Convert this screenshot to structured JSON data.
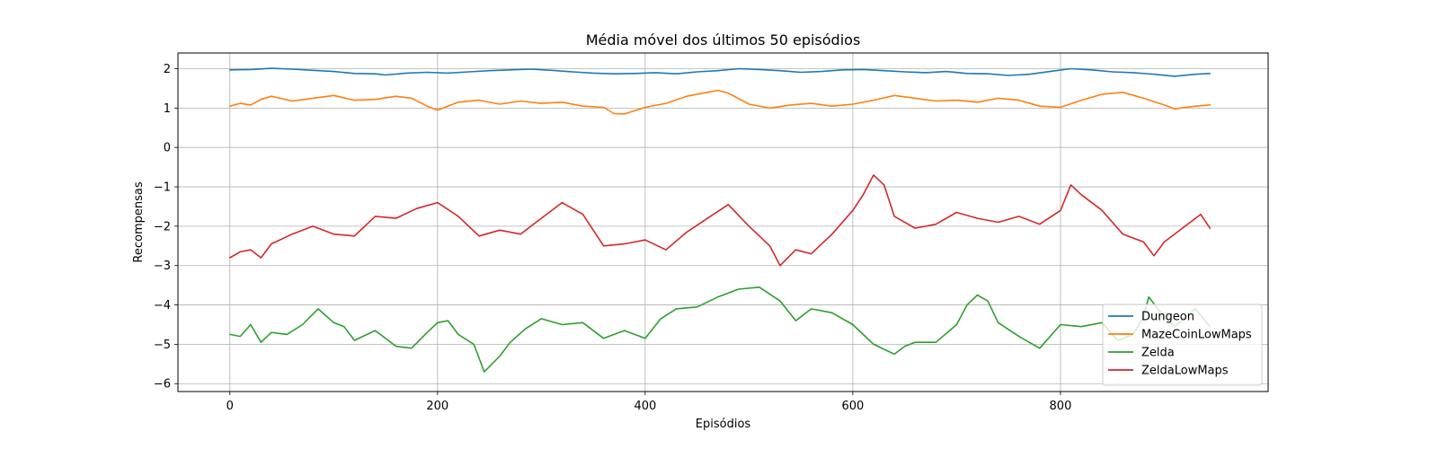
{
  "chart_data": {
    "type": "line",
    "title": "Média móvel dos últimos 50 episódios",
    "xlabel": "Episódios",
    "ylabel": "Recompensas",
    "xlim": [
      -50,
      1000
    ],
    "ylim": [
      -6.2,
      2.4
    ],
    "xticks": [
      0,
      200,
      400,
      600,
      800
    ],
    "yticks": [
      -6,
      -5,
      -4,
      -3,
      -2,
      -1,
      0,
      1,
      2
    ],
    "grid": true,
    "legend_position": "lower right",
    "series": [
      {
        "name": "Dungeon",
        "color": "#1f77b4",
        "x": [
          0,
          20,
          40,
          60,
          80,
          100,
          120,
          140,
          150,
          170,
          190,
          210,
          230,
          250,
          270,
          290,
          310,
          330,
          350,
          370,
          390,
          410,
          430,
          450,
          470,
          490,
          510,
          530,
          550,
          570,
          590,
          610,
          630,
          650,
          670,
          690,
          710,
          730,
          750,
          770,
          790,
          810,
          830,
          850,
          870,
          890,
          910,
          930,
          944
        ],
        "y": [
          1.97,
          1.98,
          2.01,
          1.99,
          1.96,
          1.93,
          1.88,
          1.87,
          1.84,
          1.89,
          1.91,
          1.89,
          1.92,
          1.95,
          1.97,
          1.99,
          1.96,
          1.92,
          1.89,
          1.87,
          1.88,
          1.9,
          1.87,
          1.92,
          1.95,
          2.0,
          1.98,
          1.95,
          1.91,
          1.93,
          1.97,
          1.98,
          1.95,
          1.92,
          1.9,
          1.93,
          1.88,
          1.87,
          1.83,
          1.86,
          1.93,
          2.0,
          1.97,
          1.92,
          1.9,
          1.86,
          1.81,
          1.86,
          1.88
        ]
      },
      {
        "name": "MazeCoinLowMaps",
        "color": "#ff7f0e",
        "x": [
          0,
          10,
          20,
          30,
          40,
          60,
          80,
          100,
          120,
          140,
          160,
          175,
          190,
          200,
          220,
          240,
          260,
          280,
          300,
          320,
          340,
          360,
          370,
          380,
          400,
          420,
          440,
          460,
          470,
          480,
          500,
          520,
          540,
          560,
          580,
          600,
          620,
          640,
          660,
          680,
          700,
          720,
          740,
          760,
          780,
          800,
          820,
          840,
          860,
          880,
          900,
          910,
          930,
          944
        ],
        "y": [
          1.05,
          1.12,
          1.08,
          1.22,
          1.3,
          1.18,
          1.25,
          1.32,
          1.2,
          1.22,
          1.3,
          1.25,
          1.05,
          0.95,
          1.15,
          1.2,
          1.1,
          1.18,
          1.12,
          1.15,
          1.05,
          1.02,
          0.86,
          0.85,
          1.02,
          1.12,
          1.3,
          1.4,
          1.45,
          1.38,
          1.1,
          1.0,
          1.08,
          1.12,
          1.05,
          1.1,
          1.2,
          1.32,
          1.25,
          1.18,
          1.2,
          1.15,
          1.25,
          1.2,
          1.05,
          1.02,
          1.2,
          1.35,
          1.4,
          1.25,
          1.08,
          0.98,
          1.05,
          1.08
        ]
      },
      {
        "name": "Zelda",
        "color": "#2ca02c",
        "x": [
          0,
          10,
          20,
          30,
          40,
          55,
          70,
          85,
          100,
          110,
          120,
          140,
          160,
          175,
          190,
          200,
          210,
          220,
          235,
          245,
          260,
          270,
          285,
          300,
          320,
          340,
          360,
          380,
          400,
          415,
          430,
          450,
          470,
          490,
          510,
          530,
          545,
          560,
          580,
          600,
          620,
          640,
          650,
          660,
          680,
          700,
          710,
          720,
          730,
          740,
          760,
          780,
          800,
          820,
          840,
          855,
          870,
          880,
          885,
          900,
          910,
          930,
          944
        ],
        "y": [
          -4.75,
          -4.8,
          -4.5,
          -4.95,
          -4.7,
          -4.75,
          -4.5,
          -4.1,
          -4.45,
          -4.55,
          -4.9,
          -4.65,
          -5.05,
          -5.1,
          -4.7,
          -4.45,
          -4.4,
          -4.75,
          -5.0,
          -5.7,
          -5.3,
          -4.95,
          -4.6,
          -4.35,
          -4.5,
          -4.45,
          -4.85,
          -4.65,
          -4.85,
          -4.35,
          -4.1,
          -4.05,
          -3.8,
          -3.6,
          -3.55,
          -3.9,
          -4.4,
          -4.1,
          -4.2,
          -4.5,
          -5.0,
          -5.25,
          -5.05,
          -4.95,
          -4.95,
          -4.5,
          -4.0,
          -3.75,
          -3.9,
          -4.45,
          -4.8,
          -5.1,
          -4.5,
          -4.55,
          -4.45,
          -4.9,
          -4.75,
          -4.3,
          -3.8,
          -4.3,
          -4.55,
          -4.1,
          -4.55
        ]
      },
      {
        "name": "ZeldaLowMaps",
        "color": "#d62728",
        "x": [
          0,
          10,
          20,
          30,
          40,
          60,
          80,
          100,
          120,
          140,
          160,
          180,
          200,
          220,
          240,
          260,
          280,
          300,
          320,
          340,
          360,
          380,
          400,
          420,
          440,
          460,
          480,
          500,
          520,
          530,
          545,
          560,
          580,
          600,
          610,
          620,
          630,
          640,
          660,
          680,
          700,
          720,
          740,
          760,
          780,
          800,
          810,
          820,
          840,
          860,
          880,
          890,
          900,
          920,
          935,
          944
        ],
        "y": [
          -2.8,
          -2.65,
          -2.6,
          -2.8,
          -2.45,
          -2.2,
          -2.0,
          -2.2,
          -2.25,
          -1.75,
          -1.8,
          -1.55,
          -1.4,
          -1.75,
          -2.25,
          -2.1,
          -2.2,
          -1.8,
          -1.4,
          -1.7,
          -2.5,
          -2.45,
          -2.35,
          -2.6,
          -2.15,
          -1.8,
          -1.45,
          -2.0,
          -2.5,
          -3.0,
          -2.6,
          -2.7,
          -2.2,
          -1.6,
          -1.2,
          -0.7,
          -0.95,
          -1.75,
          -2.05,
          -1.95,
          -1.65,
          -1.8,
          -1.9,
          -1.75,
          -1.95,
          -1.6,
          -0.95,
          -1.2,
          -1.6,
          -2.2,
          -2.4,
          -2.75,
          -2.4,
          -2.0,
          -1.7,
          -2.05
        ]
      }
    ]
  }
}
